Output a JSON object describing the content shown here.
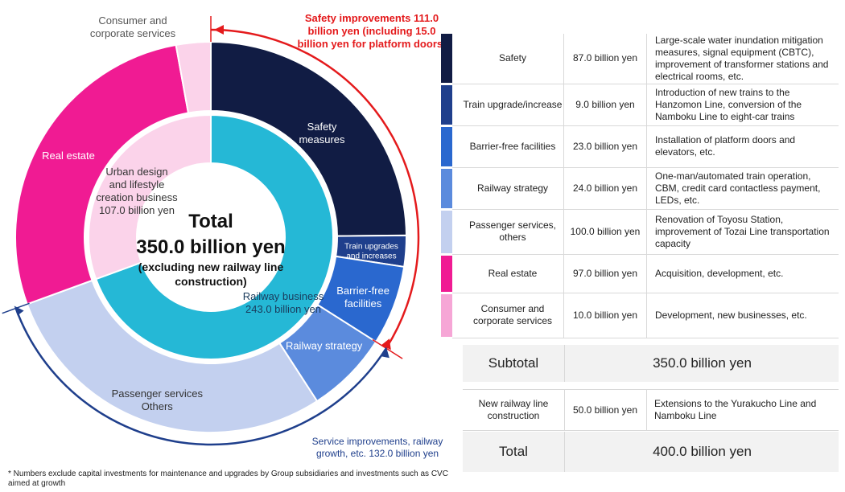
{
  "chart_data": {
    "type": "pie",
    "center": {
      "title": "Total",
      "amount": "350.0 billion yen",
      "note": "(excluding new railway line construction)"
    },
    "inner_ring": [
      {
        "label": "Railway business 243.0 billion yen",
        "value": 243.0,
        "color": "#25b8d6"
      },
      {
        "label": "Urban design and lifestyle creation business 107.0 billion yen",
        "value": 107.0,
        "color": "#fbd3ea"
      }
    ],
    "outer_ring": [
      {
        "label": "Safety measures",
        "value": 87.0,
        "color": "#111c44",
        "label_color": "#ffffff"
      },
      {
        "label": "Train upgrades and increases",
        "value": 9.0,
        "color": "#1f3f8c",
        "label_color": "#ffffff"
      },
      {
        "label": "Barrier-free facilities",
        "value": 23.0,
        "color": "#2a68cf",
        "label_color": "#ffffff"
      },
      {
        "label": "Railway strategy",
        "value": 24.0,
        "color": "#5b8bdd",
        "label_color": "#ffffff"
      },
      {
        "label": "Passenger services Others",
        "value": 100.0,
        "color": "#c3d0ef",
        "label_color": "#333333"
      },
      {
        "label": "Real estate",
        "value": 97.0,
        "color": "#f01b93",
        "label_color": "#ffffff"
      },
      {
        "label": "Consumer and corporate services",
        "value": 10.0,
        "color": "#fbd3ea",
        "label_color": "#555555"
      }
    ],
    "annotations": {
      "safety": {
        "text_lines": [
          "Safety improvements 111.0",
          "billion yen (including 15.0",
          "billion yen for platform doors)"
        ],
        "value": 111.0,
        "color": "#e41a1c"
      },
      "service": {
        "text_lines": [
          "Service improvements, railway",
          "growth, etc. 132.0 billion yen"
        ],
        "value": 132.0,
        "color": "#1f3f8c"
      }
    }
  },
  "table": {
    "rows": [
      {
        "category": "Safety",
        "amount": "87.0 billion yen",
        "description": "Large-scale water inundation mitigation measures, signal equipment (CBTC), improvement of transformer stations and electrical rooms, etc.",
        "color": "#111c44"
      },
      {
        "category": "Train upgrade/increase",
        "amount": "9.0 billion yen",
        "description": "Introduction of new trains to the Hanzomon Line, conversion of the Namboku Line to eight-car trains",
        "color": "#1f3f8c"
      },
      {
        "category": "Barrier-free facilities",
        "amount": "23.0 billion yen",
        "description": "Installation of platform doors and elevators, etc.",
        "color": "#2a68cf"
      },
      {
        "category": "Railway strategy",
        "amount": "24.0 billion yen",
        "description": "One-man/automated train operation, CBM, credit card contactless payment, LEDs, etc.",
        "color": "#5b8bdd"
      },
      {
        "category": "Passenger services, others",
        "amount": "100.0 billion yen",
        "description": "Renovation of Toyosu Station, improvement of Tozai Line transportation capacity",
        "color": "#c3d0ef"
      },
      {
        "category": "Real estate",
        "amount": "97.0 billion yen",
        "description": "Acquisition, development, etc.",
        "color": "#f01b93"
      },
      {
        "category": "Consumer and corporate services",
        "amount": "10.0 billion yen",
        "description": "Development, new businesses, etc.",
        "color": "#f6a6d6"
      }
    ],
    "subtotal": {
      "label": "Subtotal",
      "value": "350.0 billion yen"
    },
    "new_line": {
      "category": "New railway line construction",
      "amount": "50.0 billion yen",
      "description": "Extensions to the Yurakucho Line and Namboku Line"
    },
    "total": {
      "label": "Total",
      "value": "400.0 billion yen"
    }
  },
  "footnote": "* Numbers exclude capital investments for maintenance and upgrades by Group subsidiaries and investments such as CVC aimed at growth"
}
